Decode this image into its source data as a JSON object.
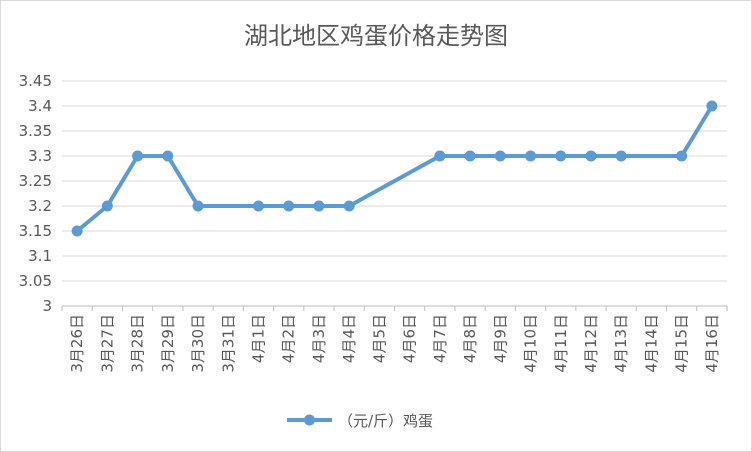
{
  "chart_data": {
    "type": "line",
    "title": "湖北地区鸡蛋价格走势图",
    "xlabel": "",
    "ylabel": "",
    "categories": [
      "3月26日",
      "3月27日",
      "3月28日",
      "3月29日",
      "3月30日",
      "3月31日",
      "4月1日",
      "4月2日",
      "4月3日",
      "4月4日",
      "4月5日",
      "4月6日",
      "4月7日",
      "4月8日",
      "4月9日",
      "4月10日",
      "4月11日",
      "4月12日",
      "4月13日",
      "4月14日",
      "4月15日",
      "4月16日"
    ],
    "y_ticks": [
      "3",
      "3.05",
      "3.1",
      "3.15",
      "3.2",
      "3.25",
      "3.3",
      "3.35",
      "3.4",
      "3.45"
    ],
    "ylim": [
      3,
      3.45
    ],
    "grid": true,
    "legend_position": "bottom",
    "series": [
      {
        "name": "（元/斤）鸡蛋",
        "color": "#5b9bd5",
        "values": [
          3.15,
          3.2,
          3.3,
          3.3,
          3.2,
          null,
          3.2,
          3.2,
          3.2,
          3.2,
          null,
          null,
          3.3,
          3.3,
          3.3,
          3.3,
          3.3,
          3.3,
          3.3,
          null,
          3.3,
          3.4
        ]
      }
    ]
  }
}
